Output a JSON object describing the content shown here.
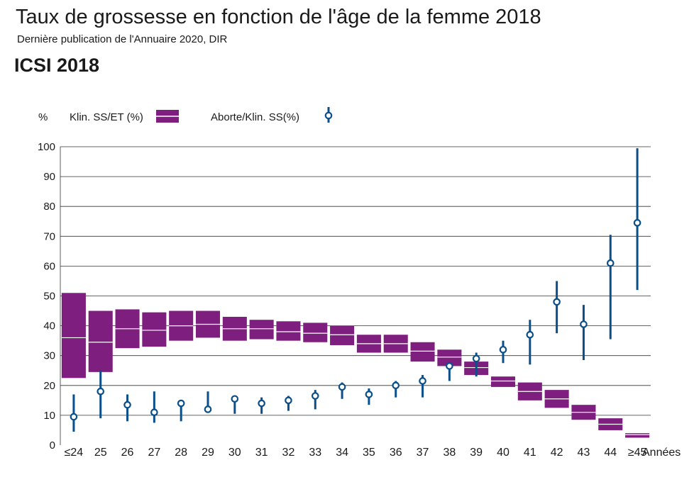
{
  "title": "Taux de grossesse en fonction de l'âge de la femme 2018",
  "subtitle": "Dernière publication de l'Annuaire 2020, DIR",
  "section_label": "ICSI 2018",
  "colors": {
    "purple": "#7e1e7e",
    "blue": "#0a4f8a",
    "grid": "#333333"
  },
  "chart_data": {
    "type": "box-and-errorbar",
    "ylabel": "%",
    "xlabel": "Années",
    "ylim": [
      0,
      100
    ],
    "yticks": [
      0,
      10,
      20,
      30,
      40,
      50,
      60,
      70,
      80,
      90,
      100
    ],
    "grid": true,
    "legend": [
      {
        "label": "Klin. SS/ET (%)",
        "marker": "box"
      },
      {
        "label": "Aborte/Klin. SS(%)",
        "marker": "circle-errorbar"
      }
    ],
    "categories": [
      "≤24",
      "25",
      "26",
      "27",
      "28",
      "29",
      "30",
      "31",
      "32",
      "33",
      "34",
      "35",
      "36",
      "37",
      "38",
      "39",
      "40",
      "41",
      "42",
      "43",
      "44",
      "≥45"
    ],
    "series": [
      {
        "name": "Klin. SS/ET (%)",
        "low": [
          22.5,
          24.5,
          32.5,
          33.0,
          35.0,
          36.0,
          35.0,
          35.5,
          35.0,
          34.5,
          33.5,
          31.0,
          31.0,
          28.0,
          26.5,
          23.5,
          19.5,
          15.0,
          12.5,
          8.5,
          5.0,
          2.5
        ],
        "mid": [
          36.0,
          34.5,
          39.0,
          38.5,
          40.0,
          40.5,
          39.0,
          39.0,
          38.0,
          37.5,
          37.0,
          34.0,
          34.0,
          31.5,
          29.5,
          26.0,
          21.5,
          18.0,
          15.5,
          11.0,
          7.0,
          3.5
        ],
        "high": [
          51.0,
          45.0,
          45.5,
          44.5,
          45.0,
          45.0,
          43.0,
          42.0,
          41.5,
          41.0,
          40.0,
          37.0,
          37.0,
          34.5,
          32.0,
          28.0,
          23.0,
          21.0,
          18.5,
          13.5,
          9.0,
          4.0
        ]
      },
      {
        "name": "Aborte/Klin. SS(%)",
        "value": [
          9.5,
          18.0,
          13.5,
          11.0,
          14.0,
          12.0,
          15.5,
          14.0,
          15.0,
          16.5,
          19.5,
          17.0,
          20.0,
          21.5,
          26.5,
          29.0,
          32.0,
          37.0,
          48.0,
          40.5,
          61.0,
          74.5
        ],
        "low": [
          4.5,
          9.0,
          8.0,
          7.5,
          8.0,
          12.0,
          10.5,
          10.5,
          11.5,
          12.0,
          15.5,
          13.5,
          16.0,
          16.0,
          21.5,
          23.0,
          27.5,
          27.0,
          37.5,
          28.5,
          35.5,
          52.0
        ],
        "high": [
          17.0,
          25.0,
          17.0,
          18.0,
          14.0,
          18.0,
          15.5,
          16.0,
          16.5,
          18.5,
          21.0,
          19.0,
          21.5,
          23.5,
          26.5,
          31.0,
          35.0,
          42.0,
          55.0,
          47.0,
          70.5,
          99.5
        ]
      }
    ]
  }
}
